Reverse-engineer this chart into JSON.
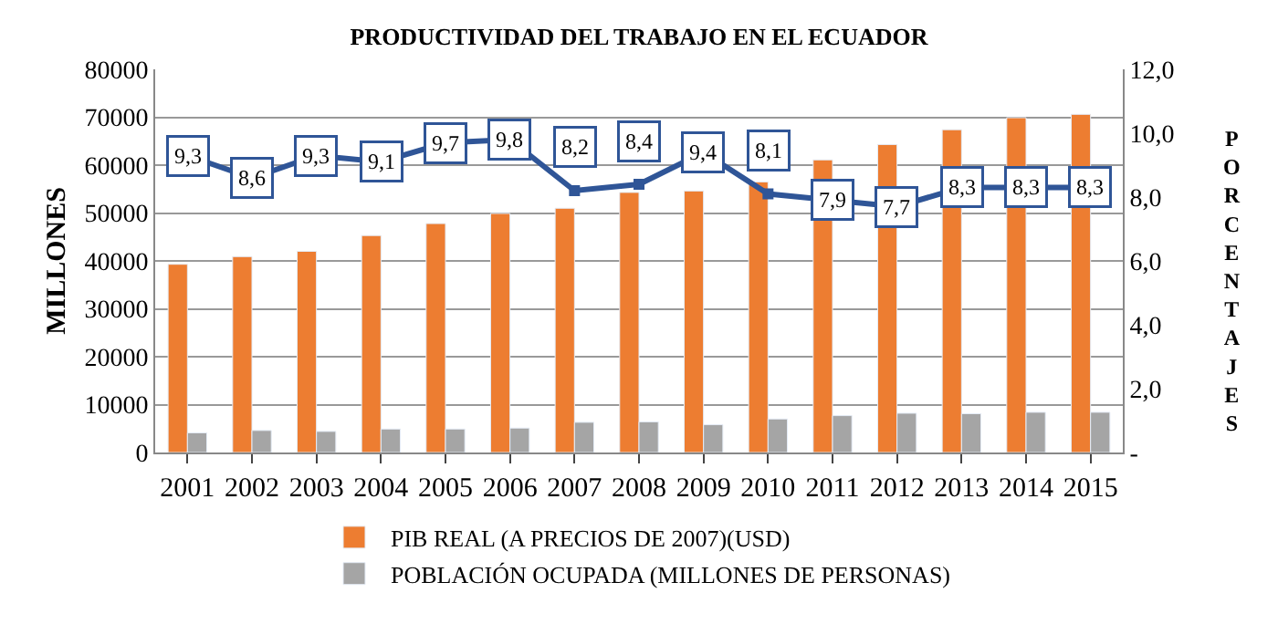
{
  "chart_data": {
    "type": "bar",
    "title": "PRODUCTIVIDAD DEL TRABAJO EN EL ECUADOR",
    "ylabel": "MILLONES",
    "y2label": "PORCENTAJES",
    "categories": [
      "2001",
      "2002",
      "2003",
      "2004",
      "2005",
      "2006",
      "2007",
      "2008",
      "2009",
      "2010",
      "2011",
      "2012",
      "2013",
      "2014",
      "2015"
    ],
    "series": [
      {
        "name": "PIB REAL (A PRECIOS DE 2007)(USD)",
        "color": "#ed7d31",
        "values": [
          39300,
          40900,
          42000,
          45300,
          47800,
          49900,
          51000,
          54300,
          54600,
          56500,
          61100,
          64300,
          67400,
          69900,
          70600
        ]
      },
      {
        "name": "POBLACIÓN OCUPADA (MILLONES DE PERSONAS)",
        "color": "#a5a5a5",
        "values": [
          4100,
          4600,
          4400,
          4900,
          4900,
          5100,
          6300,
          6400,
          5800,
          7000,
          7700,
          8200,
          8100,
          8400,
          8400
        ]
      },
      {
        "type": "line",
        "axis": "y2",
        "color": "#2f5597",
        "values": [
          9.3,
          8.6,
          9.3,
          9.1,
          9.7,
          9.8,
          8.2,
          8.4,
          9.4,
          8.1,
          7.9,
          7.7,
          8.3,
          8.3,
          8.3
        ],
        "value_labels": [
          "9,3",
          "8,6",
          "9,3",
          "9,1",
          "9,7",
          "9,8",
          "8,2",
          "8,4",
          "9,4",
          "8,1",
          "7,9",
          "7,7",
          "8,3",
          "8,3",
          "8,3"
        ]
      }
    ],
    "ylim": [
      0,
      80000
    ],
    "yticks": [
      0,
      10000,
      20000,
      30000,
      40000,
      50000,
      60000,
      70000,
      80000
    ],
    "y2lim": [
      0,
      12
    ],
    "y2ticks": [
      {
        "value": 0,
        "label": "-"
      },
      {
        "value": 2,
        "label": "2,0"
      },
      {
        "value": 4,
        "label": "4,0"
      },
      {
        "value": 6,
        "label": "6,0"
      },
      {
        "value": 8,
        "label": "8,0"
      },
      {
        "value": 10,
        "label": "10,0"
      },
      {
        "value": 12,
        "label": "12,0"
      }
    ],
    "grid": "y",
    "legend": "bottom",
    "marker": "square",
    "line_style": "solid"
  }
}
